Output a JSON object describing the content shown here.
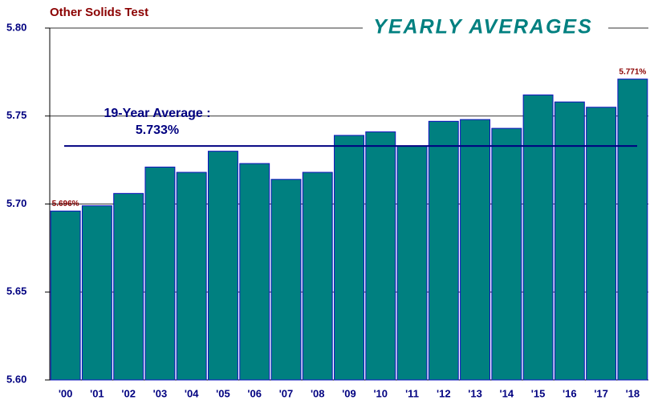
{
  "chart_data": {
    "type": "bar",
    "title": "Other Solids Test",
    "subtitle": "YEARLY AVERAGES",
    "categories": [
      "'00",
      "'01",
      "'02",
      "'03",
      "'04",
      "'05",
      "'06",
      "'07",
      "'08",
      "'09",
      "'10",
      "'11",
      "'12",
      "'13",
      "'14",
      "'15",
      "'16",
      "'17",
      "'18"
    ],
    "values": [
      5.696,
      5.699,
      5.706,
      5.721,
      5.718,
      5.73,
      5.723,
      5.714,
      5.718,
      5.739,
      5.741,
      5.733,
      5.747,
      5.748,
      5.743,
      5.762,
      5.758,
      5.755,
      5.771
    ],
    "value_labels": [
      "5.696%",
      null,
      null,
      null,
      null,
      null,
      null,
      null,
      null,
      null,
      null,
      null,
      null,
      null,
      null,
      null,
      null,
      null,
      "5.771%"
    ],
    "color": "#008080",
    "ylim": [
      5.6,
      5.8
    ],
    "yticks": [
      {
        "value": 5.6,
        "label": "5.60"
      },
      5.65,
      {
        "value": 5.7,
        "label": "5.70"
      },
      5.75,
      {
        "value": 5.8,
        "label": "5.80"
      }
    ],
    "grid": true,
    "average": {
      "value": 5.733,
      "label": "5.733%",
      "text": "19-Year Average :"
    }
  }
}
